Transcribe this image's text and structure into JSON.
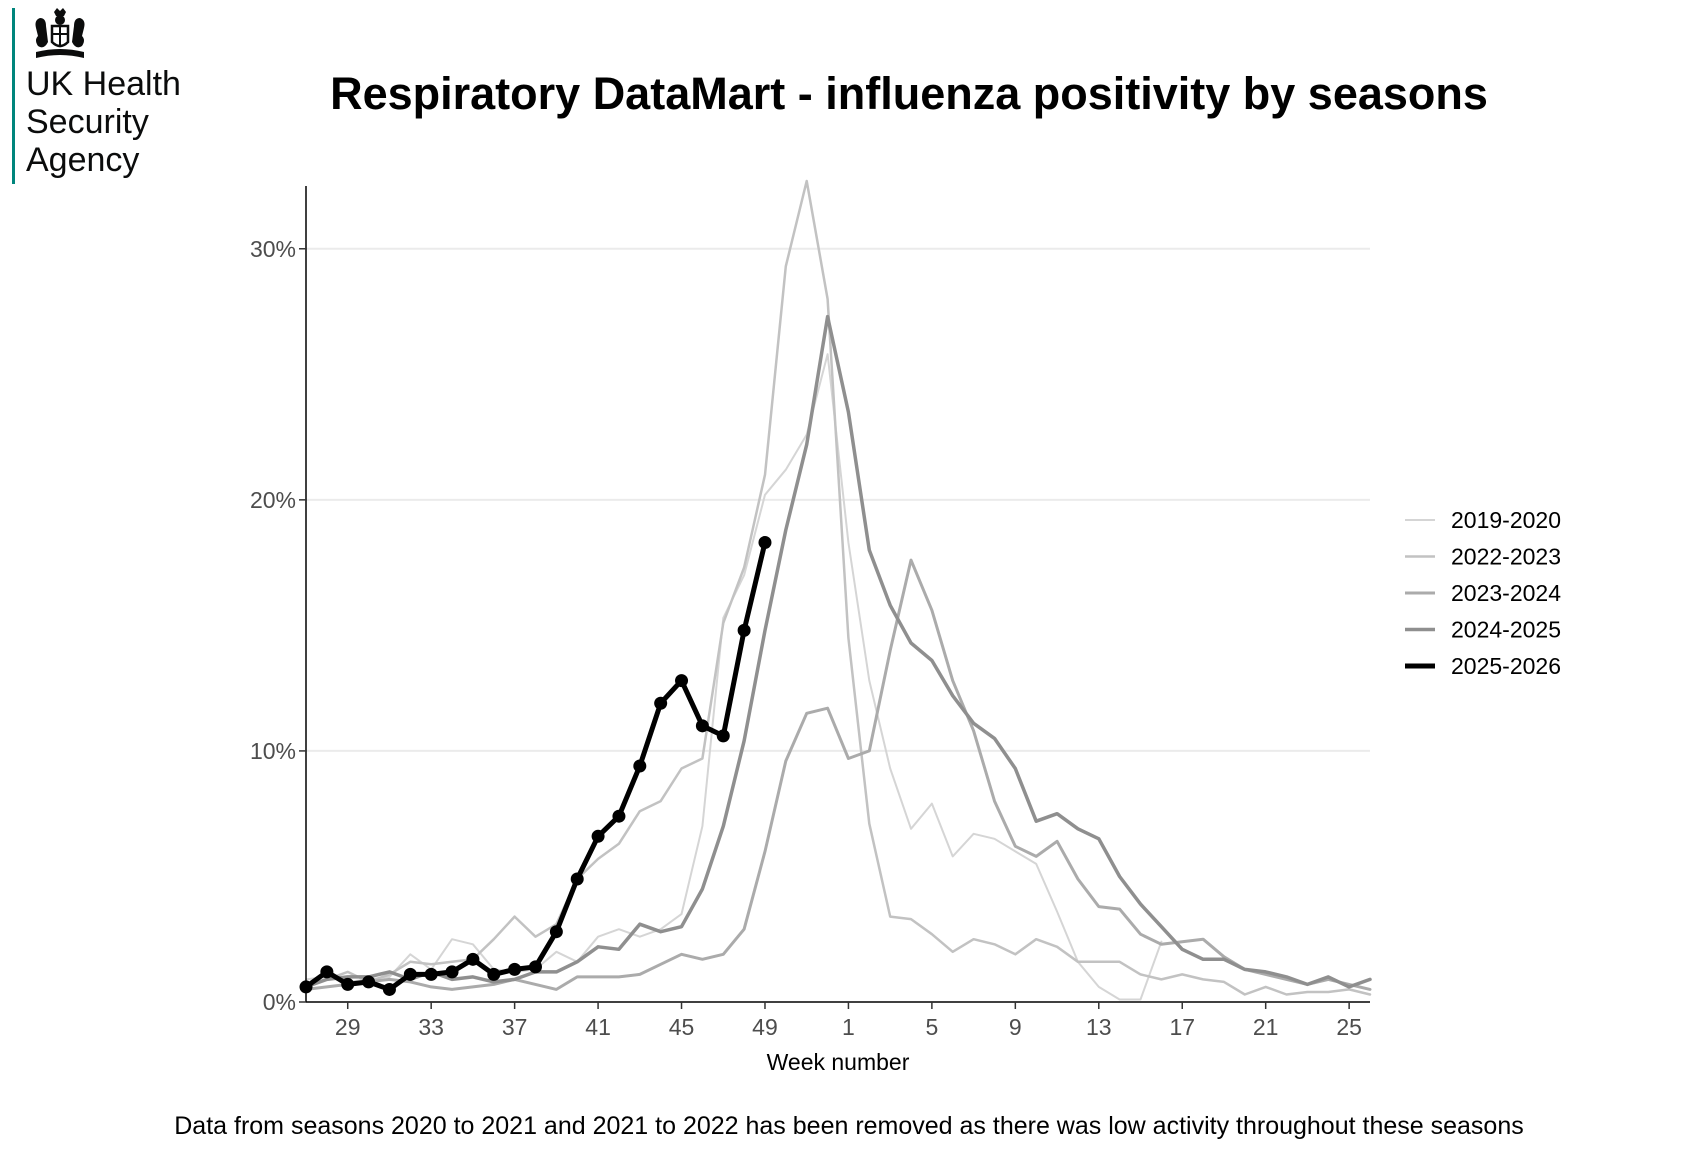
{
  "header": {
    "org_line1": "UK Health",
    "org_line2": "Security",
    "org_line3": "Agency",
    "crest_icon": "royal-coat-of-arms-icon"
  },
  "footnote": "Data from seasons 2020 to 2021 and 2021 to 2022 has been removed as there was low activity throughout these seasons",
  "chart_data": {
    "type": "line",
    "title": "Respiratory DataMart - influenza positivity by seasons",
    "xlabel": "Week number",
    "ylabel": "",
    "ylim": [
      0,
      32.5
    ],
    "yticks": [
      0,
      10,
      20,
      30
    ],
    "ytick_labels": [
      "0%",
      "10%",
      "20%",
      "30%"
    ],
    "xticks": [
      29,
      33,
      37,
      41,
      45,
      49,
      1,
      5,
      9,
      13,
      17,
      21,
      25
    ],
    "x": [
      27,
      28,
      29,
      30,
      31,
      32,
      33,
      34,
      35,
      36,
      37,
      38,
      39,
      40,
      41,
      42,
      43,
      44,
      45,
      46,
      47,
      48,
      49,
      50,
      51,
      52,
      1,
      2,
      3,
      4,
      5,
      6,
      7,
      8,
      9,
      10,
      11,
      12,
      13,
      14,
      15,
      16,
      17,
      18,
      19,
      20,
      21,
      22,
      23,
      24,
      25,
      26
    ],
    "grid": "horizontal major",
    "legend_position": "right",
    "series": [
      {
        "name": "2019-2020",
        "color": "#d5d5d5",
        "width": 2,
        "markers": false,
        "values": [
          0.9,
          1.0,
          0.8,
          0.9,
          1.0,
          1.9,
          1.3,
          2.5,
          2.3,
          1.3,
          1.2,
          1.3,
          2.0,
          1.6,
          2.6,
          2.9,
          2.6,
          2.9,
          3.5,
          7.0,
          15.3,
          17.0,
          20.2,
          21.2,
          22.6,
          25.8,
          18.3,
          12.8,
          9.3,
          6.9,
          7.9,
          5.8,
          6.7,
          6.5,
          6.0,
          5.5,
          3.6,
          1.6,
          0.6,
          0.1,
          0.1,
          2.4,
          null,
          null,
          null,
          null,
          null,
          null,
          null,
          null,
          null,
          null
        ]
      },
      {
        "name": "2022-2023",
        "color": "#c2c2c2",
        "width": 2.5,
        "markers": false,
        "values": [
          0.7,
          0.9,
          1.2,
          0.8,
          1.1,
          1.6,
          1.5,
          1.6,
          1.7,
          2.5,
          3.4,
          2.6,
          3.1,
          4.9,
          5.7,
          6.3,
          7.6,
          8.0,
          9.3,
          9.7,
          15.1,
          17.3,
          21.0,
          29.3,
          32.7,
          28.0,
          14.5,
          7.1,
          3.4,
          3.3,
          2.7,
          2.0,
          2.5,
          2.3,
          1.9,
          2.5,
          2.2,
          1.6,
          1.6,
          1.6,
          1.1,
          0.9,
          1.1,
          0.9,
          0.8,
          0.3,
          0.6,
          0.3,
          0.4,
          0.4,
          0.5,
          0.3
        ]
      },
      {
        "name": "2023-2024",
        "color": "#ababab",
        "width": 3,
        "markers": false,
        "values": [
          0.5,
          0.6,
          0.7,
          0.8,
          0.9,
          0.8,
          0.6,
          0.5,
          0.6,
          0.7,
          0.9,
          0.7,
          0.5,
          1.0,
          1.0,
          1.0,
          1.1,
          1.5,
          1.9,
          1.7,
          1.9,
          2.9,
          6.0,
          9.6,
          11.5,
          11.7,
          9.7,
          10.0,
          14.0,
          17.6,
          15.6,
          12.8,
          10.8,
          8.0,
          6.2,
          5.8,
          6.4,
          4.9,
          3.8,
          3.7,
          2.7,
          2.3,
          2.4,
          2.5,
          1.8,
          1.3,
          1.1,
          0.9,
          0.7,
          0.9,
          0.7,
          0.5
        ]
      },
      {
        "name": "2024-2025",
        "color": "#8f8f8f",
        "width": 3.5,
        "markers": false,
        "values": [
          0.6,
          0.9,
          1.0,
          1.0,
          1.2,
          0.9,
          1.2,
          0.9,
          1.0,
          0.8,
          0.9,
          1.2,
          1.2,
          1.6,
          2.2,
          2.1,
          3.1,
          2.8,
          3.0,
          4.5,
          7.0,
          10.4,
          14.8,
          18.8,
          22.2,
          27.3,
          23.5,
          18.0,
          15.8,
          14.3,
          13.6,
          12.2,
          11.1,
          10.5,
          9.3,
          7.2,
          7.5,
          6.9,
          6.5,
          5.0,
          3.9,
          3.0,
          2.1,
          1.7,
          1.7,
          1.3,
          1.2,
          1.0,
          0.7,
          1.0,
          0.6,
          0.9
        ]
      },
      {
        "name": "2025-2026",
        "color": "#000000",
        "width": 5,
        "markers": true,
        "values": [
          0.6,
          1.2,
          0.7,
          0.8,
          0.5,
          1.1,
          1.1,
          1.2,
          1.7,
          1.1,
          1.3,
          1.4,
          2.8,
          4.9,
          6.6,
          7.4,
          9.4,
          11.9,
          12.8,
          11.0,
          10.6,
          14.8,
          18.3,
          null,
          null,
          null,
          null,
          null,
          null,
          null,
          null,
          null,
          null,
          null,
          null,
          null,
          null,
          null,
          null,
          null,
          null,
          null,
          null,
          null,
          null,
          null,
          null,
          null,
          null,
          null,
          null,
          null
        ]
      }
    ]
  }
}
